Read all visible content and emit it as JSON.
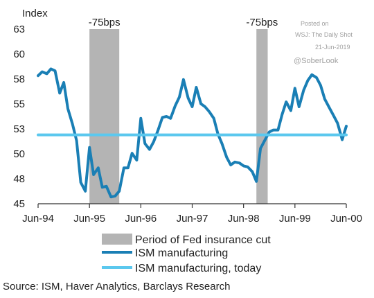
{
  "chart_data": {
    "type": "line",
    "ylabel": "Index",
    "ylim": [
      45,
      63
    ],
    "yticks": [
      "45",
      "48",
      "50",
      "53",
      "55",
      "58",
      "60",
      "63"
    ],
    "ytick_values": [
      45,
      47.57,
      50.14,
      52.71,
      55.29,
      57.86,
      60.43,
      63
    ],
    "x_range": [
      1994.5,
      2000.5
    ],
    "xticks": [
      "Jun-94",
      "Jun-95",
      "Jun-96",
      "Jun-97",
      "Jun-98",
      "Jun-99",
      "Jun-00"
    ],
    "xtick_values": [
      1994.5,
      1995.5,
      1996.5,
      1997.5,
      1998.5,
      1999.5,
      2000.5
    ],
    "grid": false,
    "legend_position": "bottom",
    "shaded_periods": [
      {
        "start": 1995.5,
        "end": 1996.08,
        "label": "-75bps"
      },
      {
        "start": 1998.75,
        "end": 1998.97,
        "label": "-75bps"
      }
    ],
    "series": [
      {
        "name": "ISM manufacturing",
        "color": "#1a7fb5",
        "x": [
          1994.5,
          1994.58,
          1994.67,
          1994.75,
          1994.83,
          1994.92,
          1995.0,
          1995.08,
          1995.17,
          1995.25,
          1995.33,
          1995.42,
          1995.5,
          1995.58,
          1995.67,
          1995.75,
          1995.83,
          1995.92,
          1996.0,
          1996.08,
          1996.17,
          1996.25,
          1996.33,
          1996.42,
          1996.5,
          1996.58,
          1996.67,
          1996.75,
          1996.83,
          1996.92,
          1997.0,
          1997.08,
          1997.17,
          1997.25,
          1997.33,
          1997.42,
          1997.5,
          1997.58,
          1997.67,
          1997.75,
          1997.83,
          1997.92,
          1998.0,
          1998.08,
          1998.17,
          1998.25,
          1998.33,
          1998.42,
          1998.5,
          1998.58,
          1998.67,
          1998.75,
          1998.83,
          1998.92,
          1999.0,
          1999.08,
          1999.17,
          1999.25,
          1999.33,
          1999.42,
          1999.5,
          1999.58,
          1999.67,
          1999.75,
          1999.83,
          1999.92,
          2000.0,
          2000.08,
          2000.17,
          2000.25,
          2000.33,
          2000.42,
          2000.5
        ],
        "values": [
          58.2,
          58.6,
          58.4,
          58.9,
          58.7,
          56.4,
          57.5,
          54.8,
          53.2,
          51.5,
          47.2,
          46.3,
          50.8,
          48.0,
          48.7,
          46.7,
          46.8,
          45.7,
          45.8,
          46.3,
          48.7,
          48.7,
          50.2,
          49.5,
          53.8,
          51.2,
          50.6,
          51.4,
          52.5,
          53.9,
          54.0,
          53.8,
          55.1,
          56.0,
          57.8,
          55.9,
          55.0,
          57.0,
          55.3,
          55.0,
          54.5,
          53.8,
          52.2,
          51.2,
          49.8,
          49.0,
          49.3,
          49.2,
          48.9,
          48.8,
          48.3,
          47.3,
          50.7,
          51.6,
          52.4,
          52.6,
          52.6,
          54.2,
          55.5,
          54.6,
          56.9,
          55.0,
          56.7,
          57.7,
          58.3,
          58.0,
          57.2,
          55.8,
          54.9,
          54.1,
          53.3,
          51.6,
          53.0
        ]
      },
      {
        "name": "ISM manufacturing, today",
        "color": "#5bc8ee",
        "x": [
          1994.5,
          2000.5
        ],
        "values": [
          52.1,
          52.1
        ]
      }
    ]
  },
  "annotations": {
    "posted_on": "Posted on",
    "source_pub": "WSJ: The Daily Shot",
    "date": "21-Jun-2019",
    "handle": "@SoberLook"
  },
  "legend": {
    "shade_label": "Period of Fed insurance cut",
    "series1_label": "ISM manufacturing",
    "series2_label": "ISM manufacturing, today",
    "shade_color": "#b4b4b4",
    "series1_color": "#1a7fb5",
    "series2_color": "#5bc8ee"
  },
  "source": "Source: ISM, Haver Analytics, Barclays Research"
}
